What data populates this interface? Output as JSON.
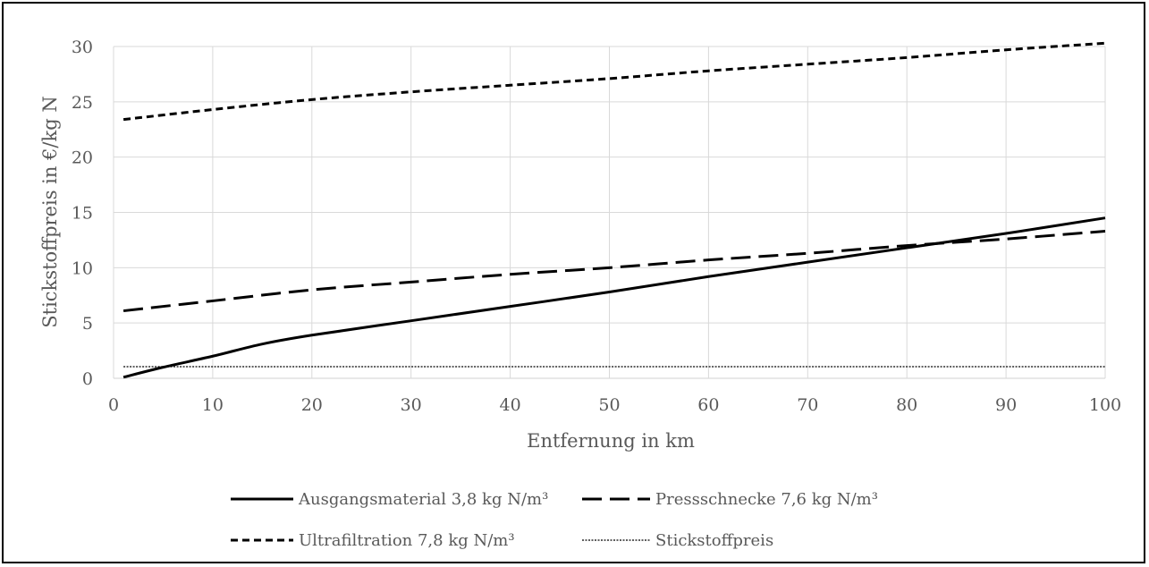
{
  "chart_data": {
    "type": "line",
    "xlabel": "Entfernung in km",
    "ylabel": "Stickstoffpreis in €/kg N",
    "xlim": [
      0,
      100
    ],
    "ylim": [
      0,
      30
    ],
    "x_ticks": [
      0,
      10,
      20,
      30,
      40,
      50,
      60,
      70,
      80,
      90,
      100
    ],
    "y_ticks": [
      0,
      5,
      10,
      15,
      20,
      25,
      30
    ],
    "grid": {
      "vertical": true,
      "horizontal": true
    },
    "legend_position": "bottom",
    "series": [
      {
        "name": "Ausgangsmaterial 3,8 kg N/m³",
        "style": "solid",
        "color": "#000000",
        "x": [
          1,
          5,
          10,
          15,
          20,
          30,
          40,
          50,
          60,
          70,
          80,
          90,
          100
        ],
        "y": [
          0.1,
          1.0,
          2.0,
          3.1,
          3.9,
          5.2,
          6.5,
          7.8,
          9.2,
          10.5,
          11.8,
          13.1,
          14.5
        ]
      },
      {
        "name": "Pressschnecke 7,6 kg N/m³",
        "style": "long-dash",
        "color": "#000000",
        "x": [
          1,
          10,
          20,
          30,
          40,
          50,
          60,
          70,
          80,
          90,
          100
        ],
        "y": [
          6.1,
          7.0,
          8.0,
          8.7,
          9.4,
          10.0,
          10.7,
          11.3,
          12.0,
          12.6,
          13.3
        ]
      },
      {
        "name": "Ultrafiltration 7,8 kg N/m³",
        "style": "short-dash",
        "color": "#000000",
        "x": [
          1,
          10,
          20,
          30,
          40,
          50,
          60,
          70,
          80,
          90,
          100
        ],
        "y": [
          23.4,
          24.3,
          25.2,
          25.9,
          26.5,
          27.1,
          27.8,
          28.4,
          29.0,
          29.7,
          30.3
        ]
      },
      {
        "name": "Stickstoffpreis",
        "style": "dotted",
        "color": "#000000",
        "x": [
          1,
          100
        ],
        "y": [
          1.05,
          1.05
        ]
      }
    ]
  }
}
